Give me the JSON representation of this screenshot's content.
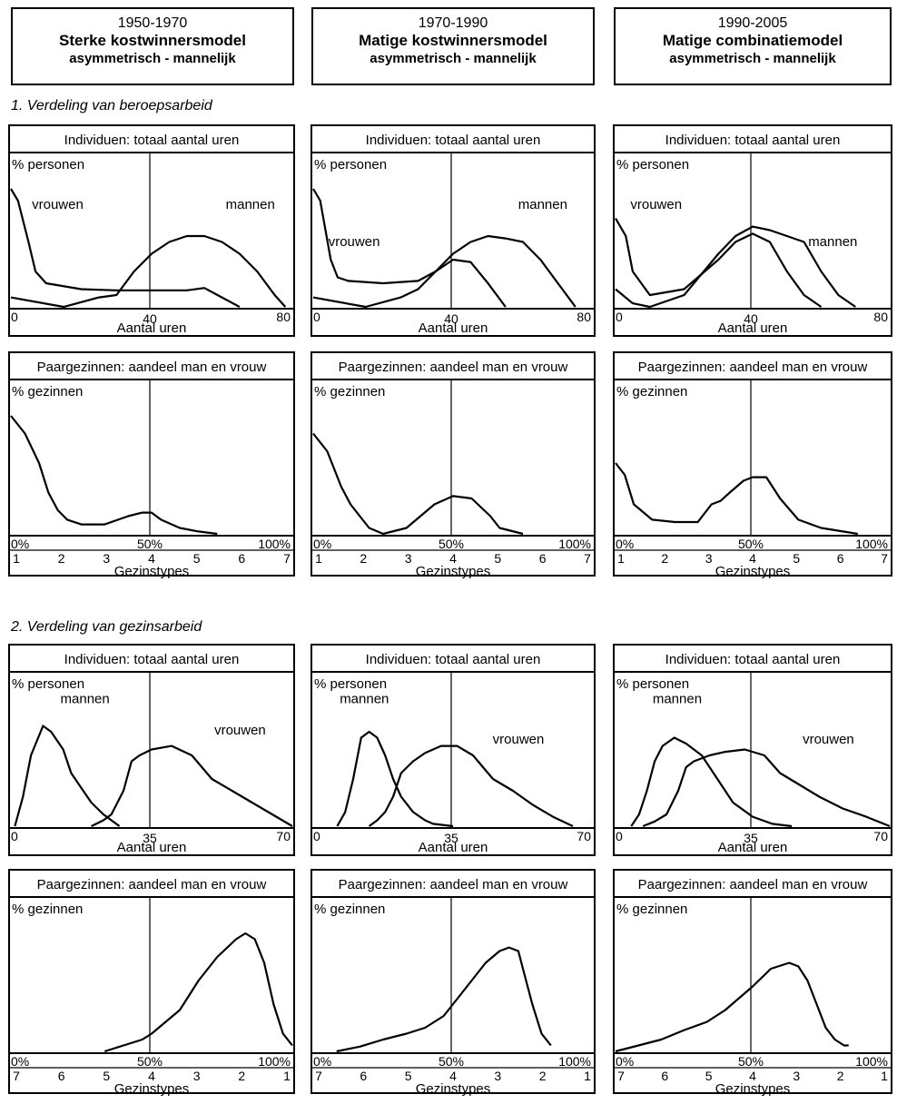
{
  "headers": [
    {
      "period": "1950-1970",
      "model": "Sterke kostwinnersmodel",
      "type": "asymmetrisch - mannelijk"
    },
    {
      "period": "1970-1990",
      "model": "Matige kostwinnersmodel",
      "type": "asymmetrisch - mannelijk"
    },
    {
      "period": "1990-2005",
      "model": "Matige combinatiemodel",
      "type": "asymmetrisch - mannelijk"
    }
  ],
  "sections": {
    "s1": "1.  Verdeling van beroepsarbeid",
    "s2": "2.  Verdeling van gezinsarbeid"
  },
  "labels": {
    "indiv_title": "Individuen: totaal aantal uren",
    "fam_title": "Paargezinnen: aandeel man en vrouw",
    "pct_personen": "% personen",
    "pct_gezinnen": "% gezinnen",
    "aantal_uren": "Aantal uren",
    "gezinstypes": "Gezinstypes",
    "mannen": "mannen",
    "vrouwen": "vrouwen",
    "p0": "0%",
    "p50": "50%",
    "p100": "100%"
  },
  "axes": {
    "hours_paid": [
      "0",
      "40",
      "80"
    ],
    "hours_care": [
      "0",
      "35",
      "70"
    ],
    "types_asc": [
      "1",
      "2",
      "3",
      "4",
      "5",
      "6",
      "7"
    ],
    "types_desc": [
      "7",
      "6",
      "5",
      "4",
      "3",
      "2",
      "1"
    ]
  },
  "chart_data": [
    {
      "type": "line",
      "section": "Verdeling van beroepsarbeid",
      "period": "1950-1970",
      "title": "Individuen: totaal aantal uren",
      "ylabel": "% personen",
      "xlabel": "Aantal uren",
      "xlim": [
        0,
        80
      ],
      "series": [
        {
          "name": "vrouwen",
          "x": [
            0,
            2,
            5,
            7,
            10,
            20,
            30,
            40,
            50,
            55,
            60,
            65
          ],
          "y": [
            100,
            90,
            55,
            30,
            20,
            15,
            14,
            14,
            14,
            16,
            8,
            0
          ]
        },
        {
          "name": "mannen",
          "x": [
            0,
            15,
            25,
            30,
            35,
            40,
            45,
            50,
            55,
            60,
            65,
            70,
            75,
            78
          ],
          "y": [
            8,
            0,
            8,
            10,
            30,
            45,
            55,
            60,
            60,
            55,
            45,
            30,
            10,
            0
          ]
        }
      ]
    },
    {
      "type": "line",
      "section": "Verdeling van beroepsarbeid",
      "period": "1970-1990",
      "title": "Individuen: totaal aantal uren",
      "ylabel": "% personen",
      "xlabel": "Aantal uren",
      "xlim": [
        0,
        80
      ],
      "series": [
        {
          "name": "vrouwen",
          "x": [
            0,
            2,
            5,
            7,
            10,
            20,
            30,
            35,
            40,
            45,
            50,
            55
          ],
          "y": [
            100,
            90,
            40,
            25,
            22,
            20,
            22,
            30,
            40,
            38,
            20,
            0
          ]
        },
        {
          "name": "mannen",
          "x": [
            0,
            15,
            25,
            30,
            35,
            40,
            45,
            50,
            55,
            60,
            65,
            70,
            75
          ],
          "y": [
            8,
            0,
            8,
            15,
            30,
            45,
            55,
            60,
            58,
            55,
            40,
            20,
            0
          ]
        }
      ]
    },
    {
      "type": "line",
      "section": "Verdeling van beroepsarbeid",
      "period": "1990-2005",
      "title": "Individuen: totaal aantal uren",
      "ylabel": "% personen",
      "xlabel": "Aantal uren",
      "xlim": [
        0,
        80
      ],
      "series": [
        {
          "name": "vrouwen",
          "x": [
            0,
            3,
            5,
            10,
            20,
            30,
            35,
            40,
            45,
            50,
            55,
            60
          ],
          "y": [
            75,
            60,
            30,
            10,
            15,
            40,
            55,
            62,
            55,
            30,
            10,
            0
          ]
        },
        {
          "name": "mannen",
          "x": [
            0,
            5,
            10,
            20,
            30,
            35,
            40,
            45,
            50,
            55,
            60,
            65,
            70
          ],
          "y": [
            15,
            3,
            0,
            10,
            45,
            60,
            68,
            65,
            60,
            55,
            30,
            10,
            0
          ]
        }
      ]
    },
    {
      "type": "line",
      "section": "Verdeling van beroepsarbeid",
      "period": "1950-1970",
      "title": "Paargezinnen: aandeel man en vrouw",
      "ylabel": "% gezinnen",
      "xlabel": "Gezinstypes",
      "xlim": [
        1,
        7
      ],
      "series": [
        {
          "x": [
            1,
            1.3,
            1.6,
            1.8,
            2.0,
            2.2,
            2.5,
            3.0,
            3.5,
            3.8,
            4.0,
            4.2,
            4.6,
            5.0,
            5.4
          ],
          "y": [
            100,
            85,
            60,
            35,
            20,
            12,
            8,
            8,
            15,
            18,
            18,
            12,
            5,
            2,
            0
          ]
        }
      ]
    },
    {
      "type": "line",
      "section": "Verdeling van beroepsarbeid",
      "period": "1970-1990",
      "title": "Paargezinnen: aandeel man en vrouw",
      "ylabel": "% gezinnen",
      "xlabel": "Gezinstypes",
      "xlim": [
        1,
        7
      ],
      "series": [
        {
          "x": [
            1,
            1.3,
            1.6,
            1.8,
            2.0,
            2.2,
            2.5,
            3.0,
            3.3,
            3.6,
            4.0,
            4.4,
            4.8,
            5.0,
            5.5
          ],
          "y": [
            85,
            70,
            40,
            25,
            15,
            5,
            0,
            5,
            15,
            25,
            32,
            30,
            15,
            5,
            0
          ]
        }
      ]
    },
    {
      "type": "line",
      "section": "Verdeling van beroepsarbeid",
      "period": "1990-2005",
      "title": "Paargezinnen: aandeel man en vrouw",
      "ylabel": "% gezinnen",
      "xlabel": "Gezinstypes",
      "xlim": [
        1,
        7
      ],
      "series": [
        {
          "x": [
            1,
            1.2,
            1.4,
            1.8,
            2.3,
            2.8,
            3.1,
            3.3,
            3.5,
            3.8,
            4.0,
            4.3,
            4.6,
            5.0,
            5.5,
            6.3
          ],
          "y": [
            60,
            50,
            25,
            12,
            10,
            10,
            25,
            28,
            35,
            45,
            48,
            48,
            30,
            12,
            5,
            0
          ]
        }
      ]
    },
    {
      "type": "line",
      "section": "Verdeling van gezinsarbeid",
      "period": "1950-1970",
      "title": "Individuen: totaal aantal uren",
      "ylabel": "% personen",
      "xlabel": "Aantal uren",
      "xlim": [
        0,
        70
      ],
      "series": [
        {
          "name": "mannen",
          "x": [
            1,
            3,
            5,
            8,
            10,
            13,
            15,
            18,
            20,
            23,
            25,
            27
          ],
          "y": [
            0,
            25,
            60,
            85,
            80,
            65,
            45,
            30,
            20,
            10,
            5,
            0
          ]
        },
        {
          "name": "mannen",
          "x": [
            20,
            23,
            25,
            28,
            30,
            32,
            35,
            40,
            45,
            50,
            55,
            60,
            65,
            70
          ],
          "y": [
            0,
            5,
            10,
            30,
            55,
            60,
            65,
            68,
            60,
            40,
            30,
            20,
            10,
            0
          ]
        }
      ]
    },
    {
      "type": "line",
      "section": "Verdeling van gezinsarbeid",
      "period": "1970-1990",
      "title": "Individuen: totaal aantal uren",
      "ylabel": "% personen",
      "xlabel": "Aantal uren",
      "xlim": [
        0,
        70
      ],
      "series": [
        {
          "name": "mannen",
          "x": [
            6,
            8,
            10,
            12,
            14,
            16,
            18,
            20,
            22,
            25,
            28,
            30,
            35
          ],
          "y": [
            0,
            12,
            40,
            75,
            80,
            75,
            60,
            40,
            25,
            12,
            5,
            2,
            0
          ]
        },
        {
          "name": "vrouwen",
          "x": [
            14,
            16,
            18,
            20,
            22,
            25,
            28,
            32,
            36,
            40,
            45,
            50,
            55,
            60,
            65
          ],
          "y": [
            0,
            5,
            12,
            25,
            45,
            55,
            62,
            68,
            68,
            60,
            40,
            30,
            18,
            8,
            0
          ]
        }
      ]
    },
    {
      "type": "line",
      "section": "Verdeling van gezinsarbeid",
      "period": "1990-2005",
      "title": "Individuen: totaal aantal uren",
      "ylabel": "% personen",
      "xlabel": "Aantal uren",
      "xlim": [
        0,
        70
      ],
      "series": [
        {
          "name": "mannen",
          "x": [
            4,
            6,
            8,
            10,
            12,
            15,
            18,
            22,
            26,
            30,
            35,
            40,
            45
          ],
          "y": [
            0,
            10,
            30,
            55,
            68,
            75,
            70,
            60,
            40,
            20,
            8,
            2,
            0
          ]
        },
        {
          "name": "vrouwen",
          "x": [
            7,
            10,
            13,
            16,
            18,
            20,
            24,
            28,
            33,
            38,
            42,
            47,
            52,
            58,
            64,
            70
          ],
          "y": [
            0,
            4,
            10,
            30,
            50,
            55,
            60,
            63,
            65,
            60,
            45,
            35,
            25,
            15,
            8,
            0
          ]
        }
      ]
    },
    {
      "type": "line",
      "section": "Verdeling van gezinsarbeid",
      "period": "1950-1970",
      "title": "Paargezinnen: aandeel man en vrouw",
      "ylabel": "% gezinnen",
      "xlabel": "Gezinstypes",
      "xlim": [
        7,
        1
      ],
      "series": [
        {
          "x": [
            5.0,
            4.6,
            4.2,
            4.0,
            3.7,
            3.4,
            3.0,
            2.6,
            2.2,
            2.0,
            1.8,
            1.6,
            1.4,
            1.2,
            1.0
          ],
          "y": [
            0,
            5,
            10,
            15,
            25,
            35,
            60,
            80,
            95,
            100,
            95,
            75,
            40,
            15,
            5
          ]
        }
      ]
    },
    {
      "type": "line",
      "section": "Verdeling van gezinsarbeid",
      "period": "1970-1990",
      "title": "Paargezinnen: aandeel man en vrouw",
      "ylabel": "% gezinnen",
      "xlabel": "Gezinstypes",
      "xlim": [
        7,
        1
      ],
      "series": [
        {
          "x": [
            6.5,
            6.0,
            5.5,
            5.0,
            4.6,
            4.2,
            4.0,
            3.7,
            3.3,
            3.0,
            2.8,
            2.6,
            2.5,
            2.3,
            2.1,
            1.9
          ],
          "y": [
            0,
            4,
            10,
            15,
            20,
            30,
            40,
            55,
            75,
            85,
            88,
            85,
            70,
            40,
            15,
            5
          ]
        }
      ]
    },
    {
      "type": "line",
      "section": "Verdeling van gezinsarbeid",
      "period": "1990-2005",
      "title": "Paargezinnen: aandeel man en vrouw",
      "ylabel": "% gezinnen",
      "xlabel": "Gezinstypes",
      "xlim": [
        7,
        1
      ],
      "series": [
        {
          "x": [
            7.0,
            6.5,
            6.0,
            5.5,
            5.0,
            4.6,
            4.3,
            4.0,
            3.6,
            3.2,
            3.0,
            2.8,
            2.6,
            2.4,
            2.2,
            2.0,
            1.9
          ],
          "y": [
            0,
            5,
            10,
            18,
            25,
            35,
            45,
            55,
            70,
            75,
            72,
            60,
            40,
            20,
            10,
            5,
            5
          ]
        }
      ]
    }
  ]
}
